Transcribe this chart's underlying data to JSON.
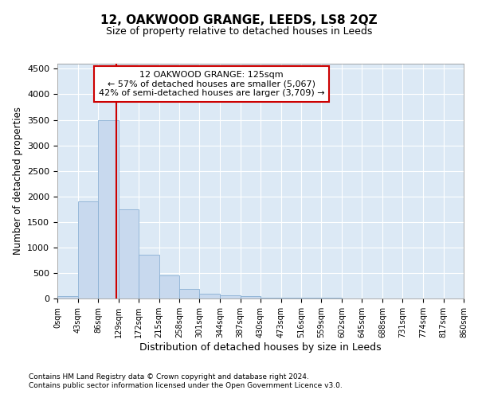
{
  "title": "12, OAKWOOD GRANGE, LEEDS, LS8 2QZ",
  "subtitle": "Size of property relative to detached houses in Leeds",
  "xlabel": "Distribution of detached houses by size in Leeds",
  "ylabel": "Number of detached properties",
  "bar_color": "#c8d9ee",
  "bar_edge_color": "#8ab0d4",
  "background_color": "#dce9f5",
  "grid_color": "#ffffff",
  "property_line_x": 125,
  "property_label": "12 OAKWOOD GRANGE: 125sqm",
  "annotation_line1": "← 57% of detached houses are smaller (5,067)",
  "annotation_line2": "42% of semi-detached houses are larger (3,709) →",
  "annotation_box_color": "#cc0000",
  "bin_edges": [
    0,
    43,
    86,
    129,
    172,
    215,
    258,
    301,
    344,
    387,
    430,
    473,
    516,
    559,
    602,
    645,
    688,
    731,
    774,
    817,
    860
  ],
  "bar_heights": [
    50,
    1900,
    3500,
    1750,
    860,
    450,
    190,
    100,
    60,
    40,
    20,
    15,
    10,
    8,
    6,
    5,
    4,
    3,
    3,
    2
  ],
  "ylim": [
    0,
    4600
  ],
  "yticks": [
    0,
    500,
    1000,
    1500,
    2000,
    2500,
    3000,
    3500,
    4000,
    4500
  ],
  "footnote1": "Contains HM Land Registry data © Crown copyright and database right 2024.",
  "footnote2": "Contains public sector information licensed under the Open Government Licence v3.0."
}
